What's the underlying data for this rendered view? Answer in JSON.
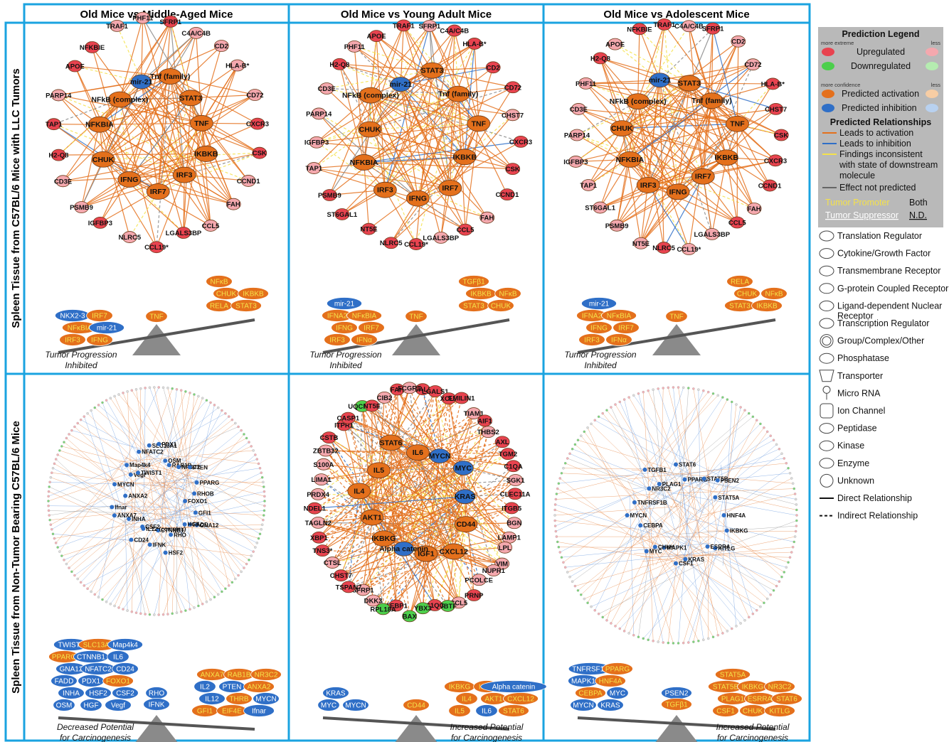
{
  "columns": [
    "Old Mice vs Middle-Aged Mice",
    "Old Mice vs Young Adult Mice",
    "Old Mice vs Adolescent Mice"
  ],
  "rows": [
    "Spleen Tissue from C57BL/6 Mice with LLC Tumors",
    "Spleen Tissue from Non-Tumor Bearing C57BL/6 Mice"
  ],
  "colors": {
    "frame": "#1aa3e0",
    "up": "#e8434f",
    "up_light": "#f4a8ae",
    "down": "#4ccf4c",
    "act": "#e4701c",
    "inh": "#2f6fc7",
    "scale": "#555555",
    "triangle": "#8a8a8a",
    "legend_bg": "#b9b9b9",
    "promoter": "#f5e24a"
  },
  "panels": [
    {
      "nodes": [
        {
          "l": "SFRP1",
          "s": "u"
        },
        {
          "l": "C4A/C4B",
          "s": "u"
        },
        {
          "l": "CD2",
          "s": "u"
        },
        {
          "l": "HLA-B*",
          "s": "u"
        },
        {
          "l": "CD72",
          "s": "u"
        },
        {
          "l": "CXCR3",
          "s": "u"
        },
        {
          "l": "IKBKB",
          "s": "a"
        },
        {
          "l": "CSK",
          "s": "u"
        },
        {
          "l": "CCND1",
          "s": "u"
        },
        {
          "l": "IRF3",
          "s": "a"
        },
        {
          "l": "FAH",
          "s": "u"
        },
        {
          "l": "IRF7",
          "s": "a"
        },
        {
          "l": "IFNG",
          "s": "a"
        },
        {
          "l": "CCL5",
          "s": "u"
        },
        {
          "l": "LGALS3BP",
          "s": "u"
        },
        {
          "l": "CCL19*",
          "s": "u"
        },
        {
          "l": "CHUK",
          "s": "a"
        },
        {
          "l": "NFKBIA",
          "s": "a"
        },
        {
          "l": "NFkB (complex)",
          "s": "a"
        },
        {
          "l": "NLRC5",
          "s": "u"
        },
        {
          "l": "IGFBP3",
          "s": "u"
        },
        {
          "l": "mir-21",
          "s": "i"
        },
        {
          "l": "PSMB9",
          "s": "u"
        },
        {
          "l": "CD3E",
          "s": "u"
        },
        {
          "l": "Tnf (family)",
          "s": "a"
        },
        {
          "l": "STAT3",
          "s": "a"
        },
        {
          "l": "H2-Q8",
          "s": "u"
        },
        {
          "l": "TNF",
          "s": "a"
        },
        {
          "l": "TAP1",
          "s": "u"
        },
        {
          "l": "PARP14",
          "s": "u"
        },
        {
          "l": "APOE",
          "s": "u"
        },
        {
          "l": "NFKBIE",
          "s": "u"
        },
        {
          "l": "TRAF1",
          "s": "u"
        },
        {
          "l": "PHF11",
          "s": "u"
        }
      ],
      "scale": {
        "left": [
          "IRF3",
          "IFNG",
          "NFκBIA",
          "mir-21",
          "NKX2-3",
          "IRF7"
        ],
        "center": "TNF",
        "right": [
          "RELA",
          "STAT3",
          "CHUK",
          "IKBKB",
          "NFκB"
        ],
        "caption": "Tumor Progression Inhibited"
      }
    },
    {
      "nodes": [
        {
          "l": "SFRP1",
          "s": "u"
        },
        {
          "l": "C4A/C4B",
          "s": "u"
        },
        {
          "l": "HLA-B*",
          "s": "u"
        },
        {
          "l": "CD2",
          "s": "u"
        },
        {
          "l": "CD72",
          "s": "u"
        },
        {
          "l": "CHST7",
          "s": "u"
        },
        {
          "l": "CXCR3",
          "s": "u"
        },
        {
          "l": "CSK",
          "s": "u"
        },
        {
          "l": "IKBKB",
          "s": "a"
        },
        {
          "l": "IRF7",
          "s": "a"
        },
        {
          "l": "CCND1",
          "s": "u"
        },
        {
          "l": "FAH",
          "s": "u"
        },
        {
          "l": "IFNG",
          "s": "a"
        },
        {
          "l": "CCL5",
          "s": "u"
        },
        {
          "l": "IRF3",
          "s": "a"
        },
        {
          "l": "NFKBIA",
          "s": "a"
        },
        {
          "l": "LGALS3BP",
          "s": "u"
        },
        {
          "l": "CCL19*",
          "s": "u"
        },
        {
          "l": "CHUK",
          "s": "a"
        },
        {
          "l": "NLRC5",
          "s": "u"
        },
        {
          "l": "NT5E",
          "s": "u"
        },
        {
          "l": "NFkB (complex)",
          "s": "a"
        },
        {
          "l": "mir-21",
          "s": "i"
        },
        {
          "l": "ST6GAL1",
          "s": "u"
        },
        {
          "l": "STAT3",
          "s": "a"
        },
        {
          "l": "PSMB9",
          "s": "u"
        },
        {
          "l": "Tnf (family)",
          "s": "a"
        },
        {
          "l": "TNF",
          "s": "a"
        },
        {
          "l": "TAP1",
          "s": "u"
        },
        {
          "l": "IGFBP3",
          "s": "u"
        },
        {
          "l": "PARP14",
          "s": "u"
        },
        {
          "l": "CD3E",
          "s": "u"
        },
        {
          "l": "H2-Q8",
          "s": "u"
        },
        {
          "l": "PHF11",
          "s": "u"
        },
        {
          "l": "APOE",
          "s": "u"
        },
        {
          "l": "TRAF1",
          "s": "u"
        }
      ],
      "scale": {
        "left": [
          "IRF3",
          "IFNα",
          "IFNG",
          "IRF7",
          "IFNA2",
          "NFκBIA",
          "mir-21"
        ],
        "center": "TNF",
        "right": [
          "STAT3",
          "CHUK",
          "IKBKB",
          "NFκB",
          "TGFβ1"
        ],
        "caption": "Tumor Progression Inhibited"
      }
    },
    {
      "nodes": [
        {
          "l": "C4A/C4B",
          "s": "u"
        },
        {
          "l": "SFRP1",
          "s": "u"
        },
        {
          "l": "CD2",
          "s": "u"
        },
        {
          "l": "CD72",
          "s": "u"
        },
        {
          "l": "HLA-B*",
          "s": "u"
        },
        {
          "l": "CHST7",
          "s": "u"
        },
        {
          "l": "CSK",
          "s": "u"
        },
        {
          "l": "CXCR3",
          "s": "u"
        },
        {
          "l": "IKBKB",
          "s": "a"
        },
        {
          "l": "CCND1",
          "s": "u"
        },
        {
          "l": "FAH",
          "s": "u"
        },
        {
          "l": "IRF7",
          "s": "a"
        },
        {
          "l": "CCL5",
          "s": "u"
        },
        {
          "l": "IFNG",
          "s": "a"
        },
        {
          "l": "LGALS3BP",
          "s": "u"
        },
        {
          "l": "IRF3",
          "s": "a"
        },
        {
          "l": "NFKBIA",
          "s": "a"
        },
        {
          "l": "CCL19*",
          "s": "u"
        },
        {
          "l": "CHUK",
          "s": "a"
        },
        {
          "l": "NLRC5",
          "s": "u"
        },
        {
          "l": "NFkB (complex)",
          "s": "a"
        },
        {
          "l": "NT5E",
          "s": "u"
        },
        {
          "l": "mir-21",
          "s": "i"
        },
        {
          "l": "PSMB9",
          "s": "u"
        },
        {
          "l": "STAT3",
          "s": "a"
        },
        {
          "l": "ST6GAL1",
          "s": "u"
        },
        {
          "l": "Tnf (family)",
          "s": "a"
        },
        {
          "l": "TAP1",
          "s": "u"
        },
        {
          "l": "IGFBP3",
          "s": "u"
        },
        {
          "l": "TNF",
          "s": "a"
        },
        {
          "l": "PARP14",
          "s": "u"
        },
        {
          "l": "CD3E",
          "s": "u"
        },
        {
          "l": "PHF11",
          "s": "u"
        },
        {
          "l": "H2-Q8",
          "s": "u"
        },
        {
          "l": "APOE",
          "s": "u"
        },
        {
          "l": "NFKBIE",
          "s": "u"
        },
        {
          "l": "TRAF1",
          "s": "u"
        }
      ],
      "scale": {
        "left": [
          "IRF3",
          "IFNα",
          "IFNG",
          "IRF7",
          "IFNA2",
          "NFκBIA",
          "mir-21"
        ],
        "center": "TNF",
        "right": [
          "STAT3",
          "IKBKB",
          "CHUK",
          "NFκB",
          "RELA"
        ],
        "caption": "Tumor Progression Inhibited"
      }
    },
    {
      "nodes": [
        {
          "l": "FOXO1",
          "s": "n"
        },
        {
          "l": "GFI1",
          "s": "n"
        },
        {
          "l": "GNA12",
          "s": "n"
        },
        {
          "l": "FADD",
          "s": "n"
        },
        {
          "l": "HGF",
          "s": "n"
        },
        {
          "l": "RHO",
          "s": "n"
        },
        {
          "l": "HSF2",
          "s": "n"
        },
        {
          "l": "CTNNB1",
          "s": "n"
        },
        {
          "l": "IFNK",
          "s": "n"
        },
        {
          "l": "IL12 (complex)",
          "s": "n"
        },
        {
          "l": "CSF2",
          "s": "n"
        },
        {
          "l": "CD24",
          "s": "n"
        },
        {
          "l": "INHA",
          "s": "n"
        },
        {
          "l": "ANXA7",
          "s": "n"
        },
        {
          "l": "Ifnar",
          "s": "n"
        },
        {
          "l": "ANXA2",
          "s": "n"
        },
        {
          "l": "MYCN",
          "s": "n"
        },
        {
          "l": "Vegf",
          "s": "n"
        },
        {
          "l": "Map4k4",
          "s": "n"
        },
        {
          "l": "TWIST1",
          "s": "n"
        },
        {
          "l": "NFATC2",
          "s": "n"
        },
        {
          "l": "SLC13A1",
          "s": "n"
        },
        {
          "l": "PDX1",
          "s": "n"
        },
        {
          "l": "OSM",
          "s": "n"
        },
        {
          "l": "RAB1B",
          "s": "n"
        },
        {
          "l": "NR3C2",
          "s": "n"
        },
        {
          "l": "PTEN",
          "s": "n"
        },
        {
          "l": "PPARG",
          "s": "n"
        },
        {
          "l": "RHOB",
          "s": "n"
        }
      ],
      "scale": {
        "left": [
          "OSM",
          "HGF",
          "Vegf",
          "INHA",
          "HSF2",
          "CSF2",
          "FADD",
          "PDX1",
          "FOXO1",
          "GNA12",
          "NFATC2",
          "CD24",
          "PPARG",
          "CTNNB1",
          "IL6",
          "TWIST1",
          "SLC13A1",
          "Map4k4"
        ],
        "center": [
          "RHO",
          "IFNK"
        ],
        "right": [
          "GFI1",
          "EIF4E",
          "Ifnar",
          "IL12",
          "THRB",
          "MYCN",
          "IL2",
          "PTEN",
          "ANXA2",
          "ANXA7",
          "RAB1B",
          "NR3C2"
        ],
        "caption": "Decreased Potential for Carcinogenesis"
      }
    },
    {
      "nodes": [
        {
          "l": "LGALS3",
          "s": "u"
        },
        {
          "l": "LGALS1",
          "s": "u"
        },
        {
          "l": "XCL1",
          "s": "u"
        },
        {
          "l": "EMILIN1",
          "s": "u"
        },
        {
          "l": "TIAM1",
          "s": "u"
        },
        {
          "l": "AIF1",
          "s": "u"
        },
        {
          "l": "THBS2",
          "s": "u"
        },
        {
          "l": "AXL",
          "s": "u"
        },
        {
          "l": "TGM2",
          "s": "u"
        },
        {
          "l": "C1QA",
          "s": "u"
        },
        {
          "l": "SGK1",
          "s": "u"
        },
        {
          "l": "CLEC11A",
          "s": "u"
        },
        {
          "l": "ITGB5",
          "s": "u"
        },
        {
          "l": "BGN",
          "s": "u"
        },
        {
          "l": "LAMP1",
          "s": "u"
        },
        {
          "l": "CD44",
          "s": "a"
        },
        {
          "l": "CXCL12",
          "s": "a"
        },
        {
          "l": "IGF1",
          "s": "a"
        },
        {
          "l": "LPL",
          "s": "u"
        },
        {
          "l": "VIM",
          "s": "u"
        },
        {
          "l": "NUPR1",
          "s": "u"
        },
        {
          "l": "PCOLCE",
          "s": "u"
        },
        {
          "l": "Alpha catenin",
          "s": "i"
        },
        {
          "l": "IKBKG",
          "s": "a"
        },
        {
          "l": "PRNP",
          "s": "u"
        },
        {
          "l": "CCL5",
          "s": "u"
        },
        {
          "l": "UBTF",
          "s": "d"
        },
        {
          "l": "C1QC",
          "s": "u"
        },
        {
          "l": "AKT1",
          "s": "a"
        },
        {
          "l": "IL4",
          "s": "a"
        },
        {
          "l": "YBX3",
          "s": "d"
        },
        {
          "l": "BAX",
          "s": "d"
        },
        {
          "l": "AEBP1",
          "s": "u"
        },
        {
          "l": "RPL18A",
          "s": "d"
        },
        {
          "l": "IL5",
          "s": "a"
        },
        {
          "l": "STAT6",
          "s": "a"
        },
        {
          "l": "IL6",
          "s": "a"
        },
        {
          "l": "DKK3",
          "s": "u"
        },
        {
          "l": "SFRP1",
          "s": "u"
        },
        {
          "l": "MYCN",
          "s": "i"
        },
        {
          "l": "MYC",
          "s": "i"
        },
        {
          "l": "KRAS",
          "s": "i"
        },
        {
          "l": "TSPAN7",
          "s": "u"
        },
        {
          "l": "CHST7",
          "s": "u"
        },
        {
          "l": "CTSL",
          "s": "u"
        },
        {
          "l": "TNS3*",
          "s": "u"
        },
        {
          "l": "XBP1",
          "s": "u"
        },
        {
          "l": "TAGLN2",
          "s": "u"
        },
        {
          "l": "NDEL1",
          "s": "u"
        },
        {
          "l": "PRDX4",
          "s": "u"
        },
        {
          "l": "LIMA1",
          "s": "u"
        },
        {
          "l": "S100A",
          "s": "u"
        },
        {
          "l": "ZBTB32",
          "s": "u"
        },
        {
          "l": "CSTB",
          "s": "u"
        },
        {
          "l": "ITPR1",
          "s": "u"
        },
        {
          "l": "CASP1",
          "s": "u"
        },
        {
          "l": "UQCRC1",
          "s": "d"
        },
        {
          "l": "NT5E",
          "s": "u"
        },
        {
          "l": "CIB2",
          "s": "u"
        },
        {
          "l": "FAH",
          "s": "u"
        },
        {
          "l": "FCGRT",
          "s": "u"
        }
      ],
      "scale": {
        "left": [
          "MYC",
          "MYCN",
          "KRAS"
        ],
        "center": "CD44",
        "right": [
          "IL5",
          "IL6",
          "STAT6",
          "IL4",
          "AKT1",
          "CXCL12",
          "IKBKG",
          "IGF1",
          "Alpha catenin"
        ],
        "caption": "Increased Potential for Carcinogenesis"
      }
    },
    {
      "nodes": [
        {
          "l": "HNF4A",
          "s": "n"
        },
        {
          "l": "IKBKG",
          "s": "n"
        },
        {
          "l": "KITLG",
          "s": "n"
        },
        {
          "l": "ESRRA",
          "s": "n"
        },
        {
          "l": "KRAS",
          "s": "n"
        },
        {
          "l": "CSF1",
          "s": "n"
        },
        {
          "l": "MAPK1",
          "s": "n"
        },
        {
          "l": "CHUK",
          "s": "n"
        },
        {
          "l": "MYC",
          "s": "n"
        },
        {
          "l": "CEBPA",
          "s": "n"
        },
        {
          "l": "MYCN",
          "s": "n"
        },
        {
          "l": "TNFRSF1B",
          "s": "n"
        },
        {
          "l": "NR3C2",
          "s": "n"
        },
        {
          "l": "TGFB1",
          "s": "n"
        },
        {
          "l": "PLAG1",
          "s": "n"
        },
        {
          "l": "STAT6",
          "s": "n"
        },
        {
          "l": "PPARG",
          "s": "n"
        },
        {
          "l": "STAT5B",
          "s": "n"
        },
        {
          "l": "PSEN2",
          "s": "n"
        },
        {
          "l": "STAT5A",
          "s": "n"
        }
      ],
      "scale": {
        "left": [
          "MYCN",
          "KRAS",
          "CEBPA",
          "MYC",
          "MAPK1",
          "HNF4A",
          "TNFRSF1B",
          "PPARG"
        ],
        "center": [
          "PSEN2",
          "TGFβ1"
        ],
        "right": [
          "CSF1",
          "CHUK",
          "KITLG",
          "PLAG1",
          "ESRRA",
          "STAT6",
          "STAT5B",
          "IKBKG",
          "NR3C2",
          "STAT5A"
        ],
        "caption": "Increased Potential for Carcinogenesis"
      }
    }
  ],
  "legend": {
    "title": "Prediction Legend",
    "more_extreme": "more extreme",
    "less": "less",
    "upregulated": "Upregulated",
    "downregulated": "Downregulated",
    "more_confidence": "more confidence",
    "predicted_activation": "Predicted activation",
    "predicted_inhibition": "Predicted inhibition",
    "relationships_title": "Predicted Relationships",
    "leads_activation": "Leads to activation",
    "leads_inhibition": "Leads to inhibition",
    "findings_inconsistent": [
      "Findings inconsistent",
      "with state of downstream",
      "molecule"
    ],
    "effect_not_predicted": "Effect not predicted",
    "tumor_promoter": "Tumor Promoter",
    "both": "Both",
    "tumor_suppressor": "Tumor Suppressor",
    "nd": "N.D."
  },
  "shape_legend": [
    {
      "label": "Translation Regulator",
      "icon": "translation-regulator-icon"
    },
    {
      "label": "Cytokine/Growth Factor",
      "icon": "cytokine-icon"
    },
    {
      "label": "Transmembrane Receptor",
      "icon": "transmembrane-receptor-icon"
    },
    {
      "label": "G-protein Coupled Receptor",
      "icon": "gpcr-icon"
    },
    {
      "label": "Ligand-dependent Nuclear",
      "label2": "Receptor",
      "icon": "nuclear-receptor-icon"
    },
    {
      "label": "Transcription Regulator",
      "icon": "transcription-regulator-icon"
    },
    {
      "label": "Group/Complex/Other",
      "icon": "group-complex-icon"
    },
    {
      "label": "Phosphatase",
      "icon": "phosphatase-icon"
    },
    {
      "label": "Transporter",
      "icon": "transporter-icon"
    },
    {
      "label": "Micro RNA",
      "icon": "micro-rna-icon"
    },
    {
      "label": "Ion Channel",
      "icon": "ion-channel-icon"
    },
    {
      "label": "Peptidase",
      "icon": "peptidase-icon"
    },
    {
      "label": "Kinase",
      "icon": "kinase-icon"
    },
    {
      "label": "Enzyme",
      "icon": "enzyme-icon"
    },
    {
      "label": "Unknown",
      "icon": "unknown-icon"
    },
    {
      "label": "Direct Relationship",
      "icon": "solid-line-icon"
    },
    {
      "label": "Indirect Relationship",
      "icon": "dashed-line-icon"
    }
  ]
}
